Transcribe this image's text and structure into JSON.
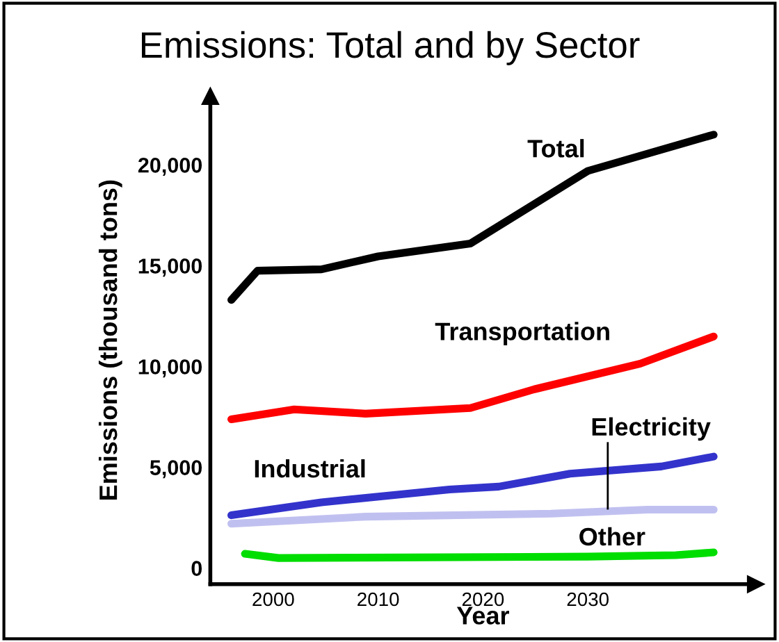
{
  "chart_data": {
    "type": "line",
    "title": "Emissions: Total and by Sector",
    "xlabel": "Year",
    "ylabel": "Emissions (thousand tons)",
    "xlim": [
      1994,
      2046
    ],
    "xticks": [
      2000,
      2010,
      2020,
      2030
    ],
    "ylim": [
      -800,
      23400
    ],
    "yticks": [
      0,
      {
        "value": 5000,
        "label": "5,000"
      },
      {
        "value": 10000,
        "label": "10,000"
      },
      {
        "value": 15000,
        "label": "15,000"
      },
      {
        "value": 20000,
        "label": "20,000"
      }
    ],
    "grid": false,
    "legend": false,
    "marker": "none",
    "line_style": "solid",
    "series": [
      {
        "name": "Total",
        "color": "#000000",
        "x": [
          1996,
          1998.5,
          2004.6,
          2010,
          2018.8,
          2030,
          2042
        ],
        "values": [
          13300,
          14750,
          14820,
          15460,
          16100,
          19700,
          21500
        ]
      },
      {
        "name": "Transportation",
        "color": "#ff0000",
        "x": [
          1996,
          2002,
          2008.8,
          2018.8,
          2024.9,
          2035,
          2042
        ],
        "values": [
          7380,
          7870,
          7660,
          7940,
          8870,
          10140,
          11490
        ]
      },
      {
        "name": "Industrial",
        "color": "#3333cc",
        "x": [
          1996,
          2004.6,
          2016.8,
          2021.5,
          2028.3,
          2037,
          2042
        ],
        "values": [
          2620,
          3260,
          3900,
          4040,
          4680,
          5040,
          5530
        ]
      },
      {
        "name": "Electricity",
        "color": "#c0c0f0",
        "x": [
          1996,
          2008.8,
          2026.5,
          2035.7,
          2042
        ],
        "values": [
          2200,
          2550,
          2700,
          2900,
          2900
        ]
      },
      {
        "name": "Other",
        "color": "#00dd00",
        "x": [
          1997.3,
          2000.5,
          2030,
          2038.4,
          2042
        ],
        "values": [
          710,
          500,
          570,
          640,
          780
        ]
      }
    ]
  }
}
